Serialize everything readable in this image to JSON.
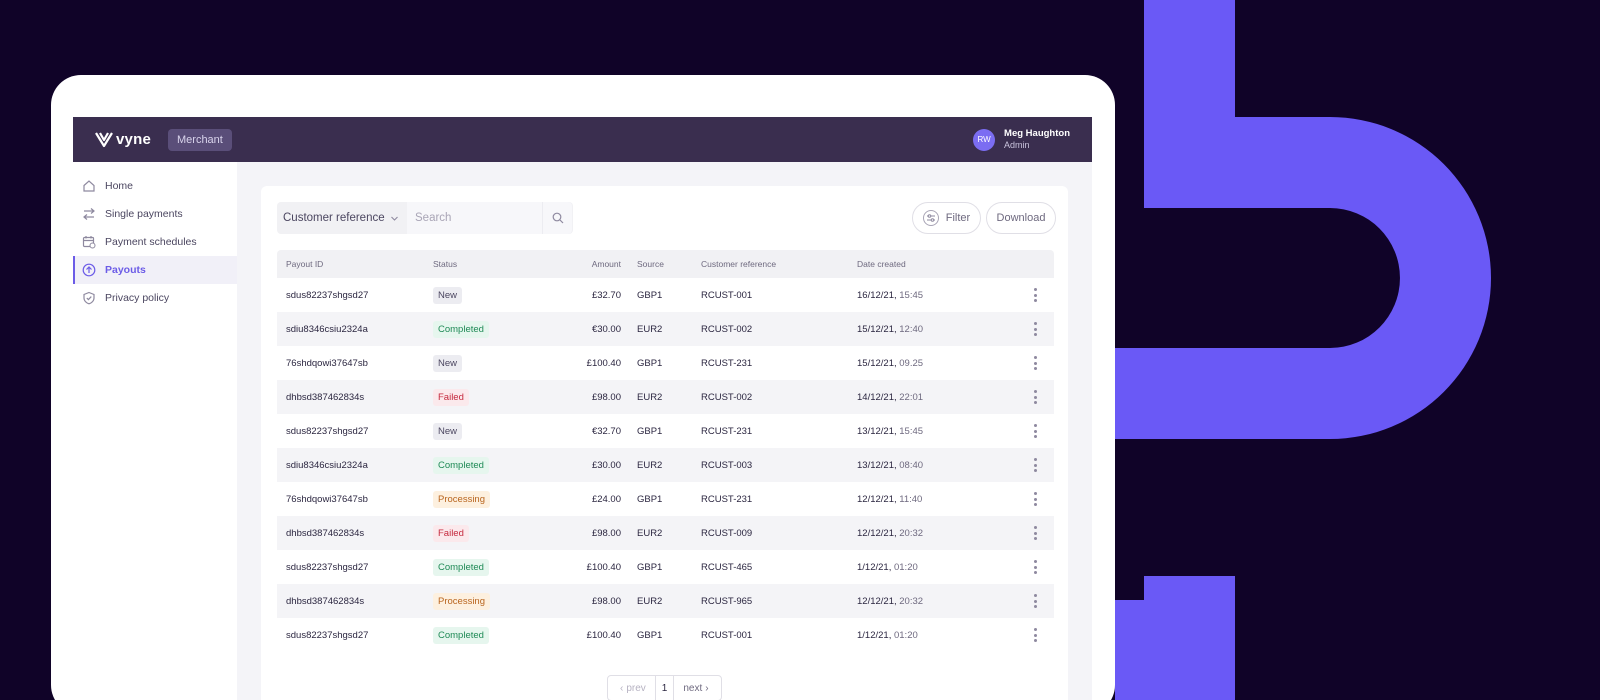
{
  "colors": {
    "background": "#100328",
    "brand_shape": "#6a59f6",
    "accent": "#6c5ce7",
    "topbar": "#3a2e4f"
  },
  "topbar": {
    "logo_text": "vyne",
    "role_badge": "Merchant",
    "user": {
      "initials": "RW",
      "name": "Meg Haughton",
      "role": "Admin"
    }
  },
  "sidebar": {
    "items": [
      {
        "label": "Home",
        "icon": "home-icon",
        "active": false
      },
      {
        "label": "Single payments",
        "icon": "transfer-icon",
        "active": false
      },
      {
        "label": "Payment schedules",
        "icon": "calendar-icon",
        "active": false
      },
      {
        "label": "Payouts",
        "icon": "payout-icon",
        "active": true
      },
      {
        "label": "Privacy policy",
        "icon": "shield-icon",
        "active": false
      }
    ]
  },
  "toolbar": {
    "filter_select": "Customer reference",
    "search_placeholder": "Search",
    "filter_label": "Filter",
    "download_label": "Download"
  },
  "table": {
    "columns": [
      "Payout ID",
      "Status",
      "Amount",
      "Source",
      "Customer reference",
      "Date created"
    ],
    "rows": [
      {
        "id": "sdus82237shgsd27",
        "status": "New",
        "status_type": "new",
        "amount": "£32.70",
        "source": "GBP1",
        "ref": "RCUST-001",
        "date": "16/12/21,",
        "time": "15:45"
      },
      {
        "id": "sdiu8346csiu2324a",
        "status": "Completed",
        "status_type": "completed",
        "amount": "€30.00",
        "source": "EUR2",
        "ref": "RCUST-002",
        "date": "15/12/21,",
        "time": "12:40"
      },
      {
        "id": "76shdqowi37647sb",
        "status": "New",
        "status_type": "new",
        "amount": "£100.40",
        "source": "GBP1",
        "ref": "RCUST-231",
        "date": "15/12/21,",
        "time": "09.25"
      },
      {
        "id": "dhbsd387462834s",
        "status": "Failed",
        "status_type": "failed",
        "amount": "£98.00",
        "source": "EUR2",
        "ref": "RCUST-002",
        "date": "14/12/21,",
        "time": "22:01"
      },
      {
        "id": "sdus82237shgsd27",
        "status": "New",
        "status_type": "new",
        "amount": "€32.70",
        "source": "GBP1",
        "ref": "RCUST-231",
        "date": "13/12/21,",
        "time": "15:45"
      },
      {
        "id": "sdiu8346csiu2324a",
        "status": "Completed",
        "status_type": "completed",
        "amount": "£30.00",
        "source": "EUR2",
        "ref": "RCUST-003",
        "date": "13/12/21,",
        "time": "08:40"
      },
      {
        "id": "76shdqowi37647sb",
        "status": "Processing",
        "status_type": "processing",
        "amount": "£24.00",
        "source": "GBP1",
        "ref": "RCUST-231",
        "date": "12/12/21,",
        "time": "11:40"
      },
      {
        "id": "dhbsd387462834s",
        "status": "Failed",
        "status_type": "failed",
        "amount": "£98.00",
        "source": "EUR2",
        "ref": "RCUST-009",
        "date": "12/12/21,",
        "time": "20:32"
      },
      {
        "id": "sdus82237shgsd27",
        "status": "Completed",
        "status_type": "completed",
        "amount": "£100.40",
        "source": "GBP1",
        "ref": "RCUST-465",
        "date": "1/12/21,",
        "time": "01:20"
      },
      {
        "id": "dhbsd387462834s",
        "status": "Processing",
        "status_type": "processing",
        "amount": "£98.00",
        "source": "EUR2",
        "ref": "RCUST-965",
        "date": "12/12/21,",
        "time": "20:32"
      },
      {
        "id": "sdus82237shgsd27",
        "status": "Completed",
        "status_type": "completed",
        "amount": "£100.40",
        "source": "GBP1",
        "ref": "RCUST-001",
        "date": "1/12/21,",
        "time": "01:20"
      }
    ]
  },
  "pagination": {
    "prev": "prev",
    "page": "1",
    "next": "next"
  }
}
